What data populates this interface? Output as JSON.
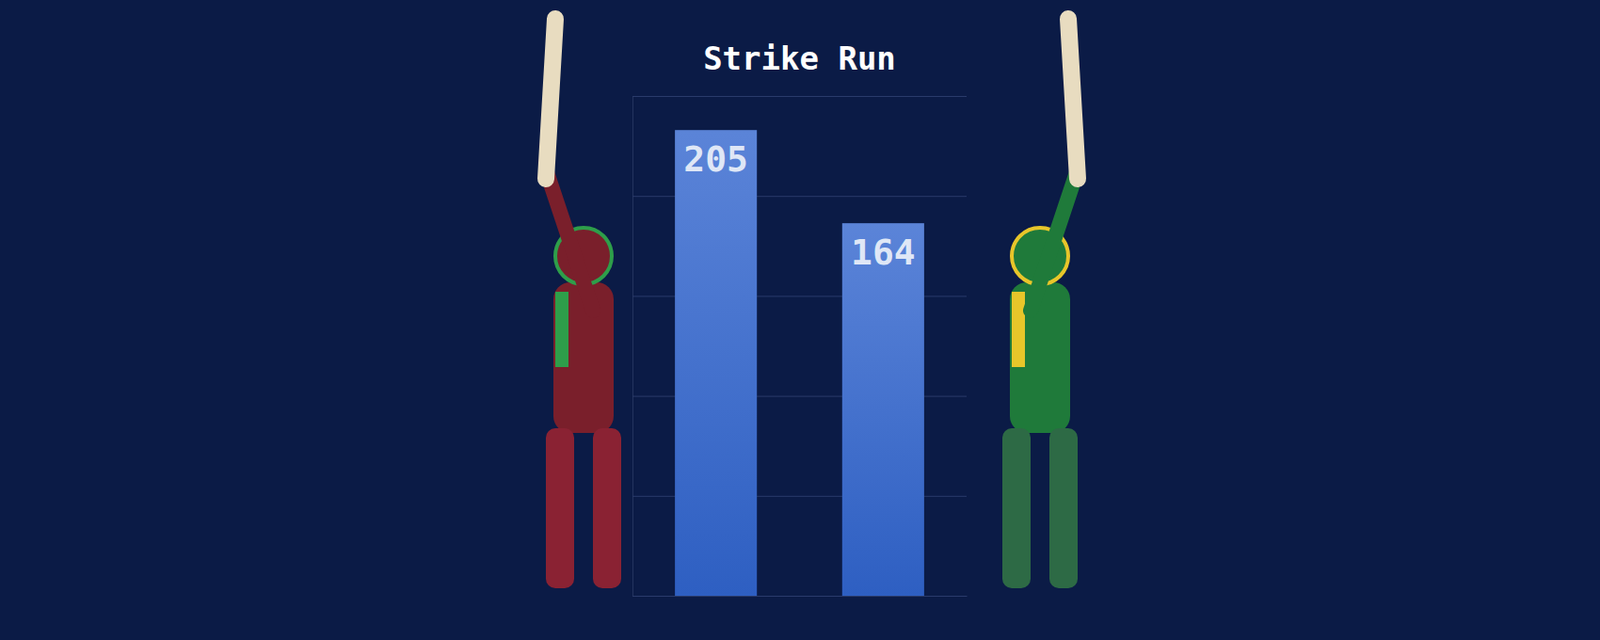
{
  "chart_data": {
    "type": "bar",
    "title": "Strike Run",
    "categories": [
      null,
      null
    ],
    "values": [
      205,
      164
    ],
    "ylim": [
      0,
      220
    ],
    "yticks": [
      0,
      44,
      88,
      132,
      176,
      220
    ],
    "grid": true,
    "data_labels": true,
    "tick_labels": false
  }
}
